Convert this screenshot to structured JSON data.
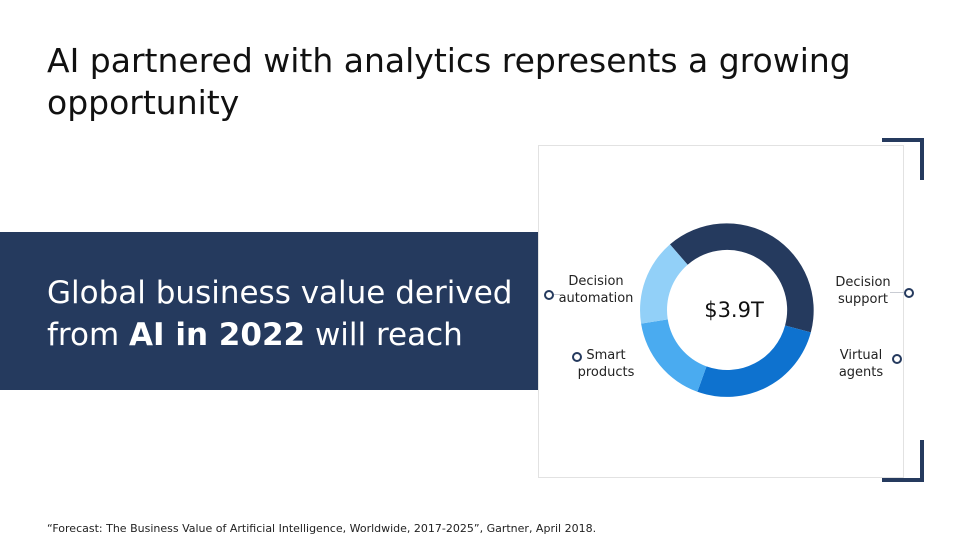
{
  "slide": {
    "title": "AI partnered with analytics represents a growing opportunity",
    "band_line1": "Global business value derived",
    "band_line2_prefix": "from ",
    "band_line2_bold": "AI in 2022",
    "band_line2_suffix": " will reach",
    "footnote": "“Forecast: The Business Value of Artificial Intelligence, Worldwide, 2017-2025”, Gartner, April 2018."
  },
  "donut": {
    "center_value": "$3.9T",
    "colors": {
      "decision_support": "#253a5e",
      "virtual_agents": "#0e72cf",
      "smart_products": "#4aabf0",
      "decision_automation": "#92d0f8"
    },
    "labels": {
      "decision_automation": "Decision automation",
      "smart_products": "Smart products",
      "decision_support": "Decision support",
      "virtual_agents": "Virtual agents"
    }
  }
}
